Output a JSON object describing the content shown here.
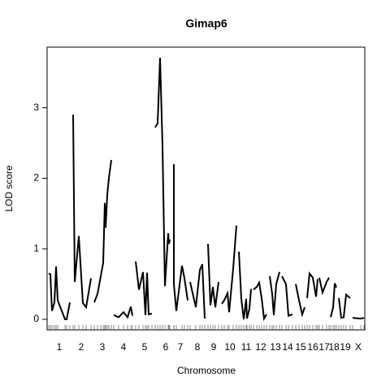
{
  "chart_data": {
    "type": "line",
    "title": "Gimap6",
    "xlabel": "Chromosome",
    "ylabel": "LOD score",
    "x": [
      2,
      4,
      6,
      9,
      11,
      13,
      22,
      24,
      28,
      null,
      32,
      34,
      39,
      44,
      48,
      54,
      null,
      58,
      62,
      66,
      69,
      71,
      72,
      74,
      76,
      79,
      null,
      82,
      88,
      94,
      99,
      103,
      105,
      null,
      109,
      113,
      118,
      121,
      123,
      125,
      129,
      null,
      133,
      136,
      139,
      142,
      145,
      149,
      150,
      151,
      null,
      156,
      156,
      159,
      166,
      169,
      173,
      null,
      176,
      183,
      188,
      191,
      194,
      null,
      198,
      201,
      204,
      207,
      211,
      null,
      215,
      218,
      222,
      224,
      229,
      233,
      null,
      236,
      239,
      242,
      245,
      246,
      249,
      251,
      null,
      254,
      258,
      261,
      264,
      267,
      270,
      null,
      274,
      277,
      279,
      282,
      286,
      null,
      289,
      294,
      297,
      302,
      null,
      306,
      310,
      314,
      317,
      null,
      320,
      323,
      327,
      331,
      333,
      null,
      335,
      339,
      344,
      347,
      null,
      349,
      352,
      354,
      356,
      null,
      359,
      362,
      365,
      368,
      373,
      null,
      376,
      386,
      390
    ],
    "series": [
      {
        "name": "LOD",
        "color": "#000000",
        "values": [
          0.65,
          0.64,
          0.12,
          0.24,
          0.75,
          0.27,
          0,
          0,
          0.24,
          null,
          2.9,
          0.53,
          1.18,
          0.23,
          0.17,
          0.58,
          null,
          0.24,
          0.36,
          0.61,
          0.8,
          1.65,
          1.3,
          1.76,
          2.0,
          2.26,
          null,
          0.06,
          0.03,
          0.1,
          0.03,
          0.18,
          0.05,
          null,
          0.82,
          0.42,
          0.67,
          0.06,
          0.66,
          0.07,
          0.08,
          null,
          2.72,
          2.78,
          3.71,
          2.46,
          0.47,
          1.22,
          1.07,
          1.13,
          null,
          2.2,
          0.5,
          0.12,
          0.76,
          0.58,
          0.27,
          null,
          0.53,
          0.17,
          0.7,
          0.78,
          0.01,
          null,
          1.07,
          0.2,
          0.46,
          0.17,
          0.53,
          null,
          0.22,
          0.27,
          0.37,
          0.1,
          0.72,
          1.33,
          null,
          0.96,
          0.29,
          0.0,
          0.29,
          0.01,
          0.15,
          0.43,
          null,
          0.42,
          0.46,
          0.52,
          0.3,
          0.01,
          0.07,
          null,
          0.61,
          0.36,
          0.06,
          0.5,
          0.67,
          null,
          0.61,
          0.5,
          0.05,
          0.07,
          null,
          0.5,
          0.27,
          0.07,
          0.17,
          null,
          0.3,
          0.65,
          0.59,
          0.32,
          0.57,
          null,
          0.59,
          0.38,
          0.53,
          0.59,
          null,
          0.03,
          0.17,
          0.51,
          0.45,
          null,
          0.3,
          0.02,
          0.03,
          0.35,
          0.3,
          null,
          0.02,
          0.01,
          0.02
        ]
      }
    ],
    "xlim": [
      0,
      391
    ],
    "xticks": [
      {
        "value": 15,
        "label": "1"
      },
      {
        "value": 42,
        "label": "2"
      },
      {
        "value": 68,
        "label": "3"
      },
      {
        "value": 94,
        "label": "4"
      },
      {
        "value": 120,
        "label": "5"
      },
      {
        "value": 146,
        "label": "6"
      },
      {
        "value": 164,
        "label": "7"
      },
      {
        "value": 185,
        "label": "8"
      },
      {
        "value": 205,
        "label": "9"
      },
      {
        "value": 225,
        "label": "10"
      },
      {
        "value": 245,
        "label": "11"
      },
      {
        "value": 263,
        "label": "12"
      },
      {
        "value": 281,
        "label": "13"
      },
      {
        "value": 296,
        "label": "14"
      },
      {
        "value": 312,
        "label": "15"
      },
      {
        "value": 327,
        "label": "16"
      },
      {
        "value": 341,
        "label": "17"
      },
      {
        "value": 353,
        "label": "18"
      },
      {
        "value": 367,
        "label": "19"
      },
      {
        "value": 383,
        "label": "X"
      }
    ],
    "ylim": [
      -0.15,
      3.86
    ],
    "yticks": [
      0,
      1,
      2,
      3
    ]
  }
}
